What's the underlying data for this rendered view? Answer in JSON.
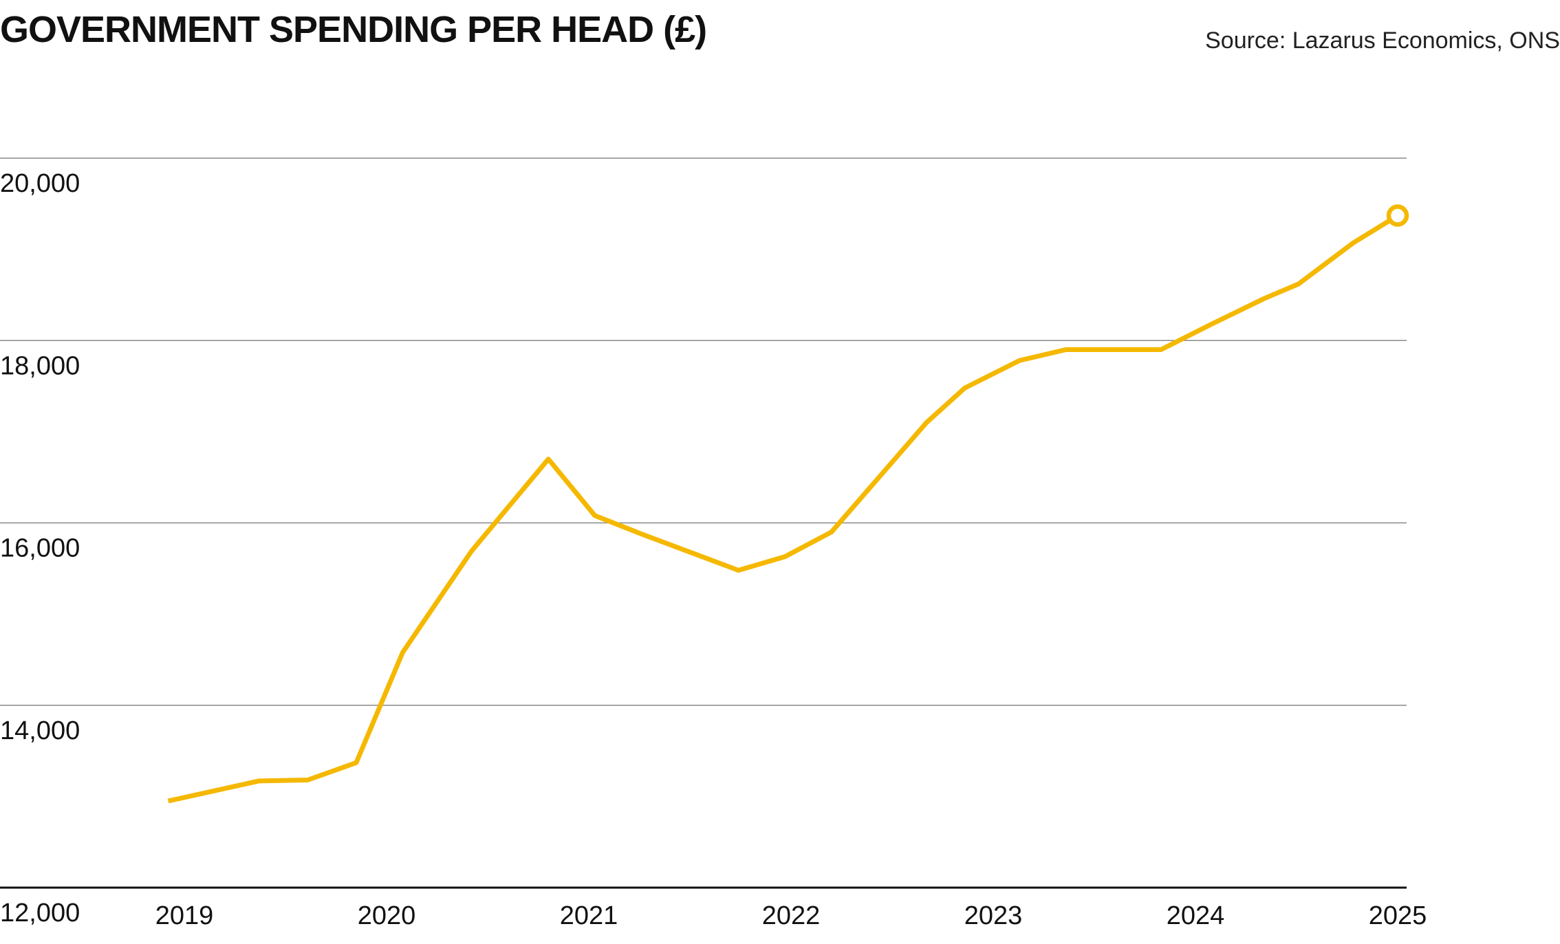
{
  "chart_data": {
    "type": "line",
    "title": "GOVERNMENT SPENDING PER HEAD (£)",
    "source": "Source: Lazarus Economics, ONS",
    "xlabel": "",
    "ylabel": "",
    "xlim": [
      2019,
      2025
    ],
    "ylim": [
      12000,
      20000
    ],
    "y_ticks": [
      12000,
      14000,
      16000,
      18000,
      20000
    ],
    "y_tick_labels": [
      "12,000",
      "14,000",
      "16,000",
      "18,000",
      "20,000"
    ],
    "x_ticks": [
      2019,
      2020,
      2021,
      2022,
      2023,
      2024,
      2025
    ],
    "x_tick_labels": [
      "2019",
      "2020",
      "2021",
      "2022",
      "2023",
      "2024",
      "2025"
    ],
    "grid": "horizontal",
    "line_color": "#F5B800",
    "grid_color": "#888888",
    "axis_color": "#111111",
    "end_marker": "hollow-circle",
    "series": [
      {
        "x": [
          2018.92,
          2019.37,
          2019.61,
          2019.85,
          2020.08,
          2020.42,
          2020.8,
          2021.03,
          2021.27,
          2021.74,
          2021.97,
          2022.2,
          2022.67,
          2022.86,
          2023.13,
          2023.36,
          2023.58,
          2023.83,
          2024.08,
          2024.34,
          2024.51,
          2024.78,
          2025.0
        ],
        "y": [
          12950,
          13170,
          13180,
          13370,
          14580,
          15690,
          16700,
          16080,
          15870,
          15480,
          15630,
          15900,
          17100,
          17480,
          17780,
          17900,
          17900,
          17900,
          18180,
          18460,
          18620,
          19070,
          19370
        ]
      }
    ]
  }
}
